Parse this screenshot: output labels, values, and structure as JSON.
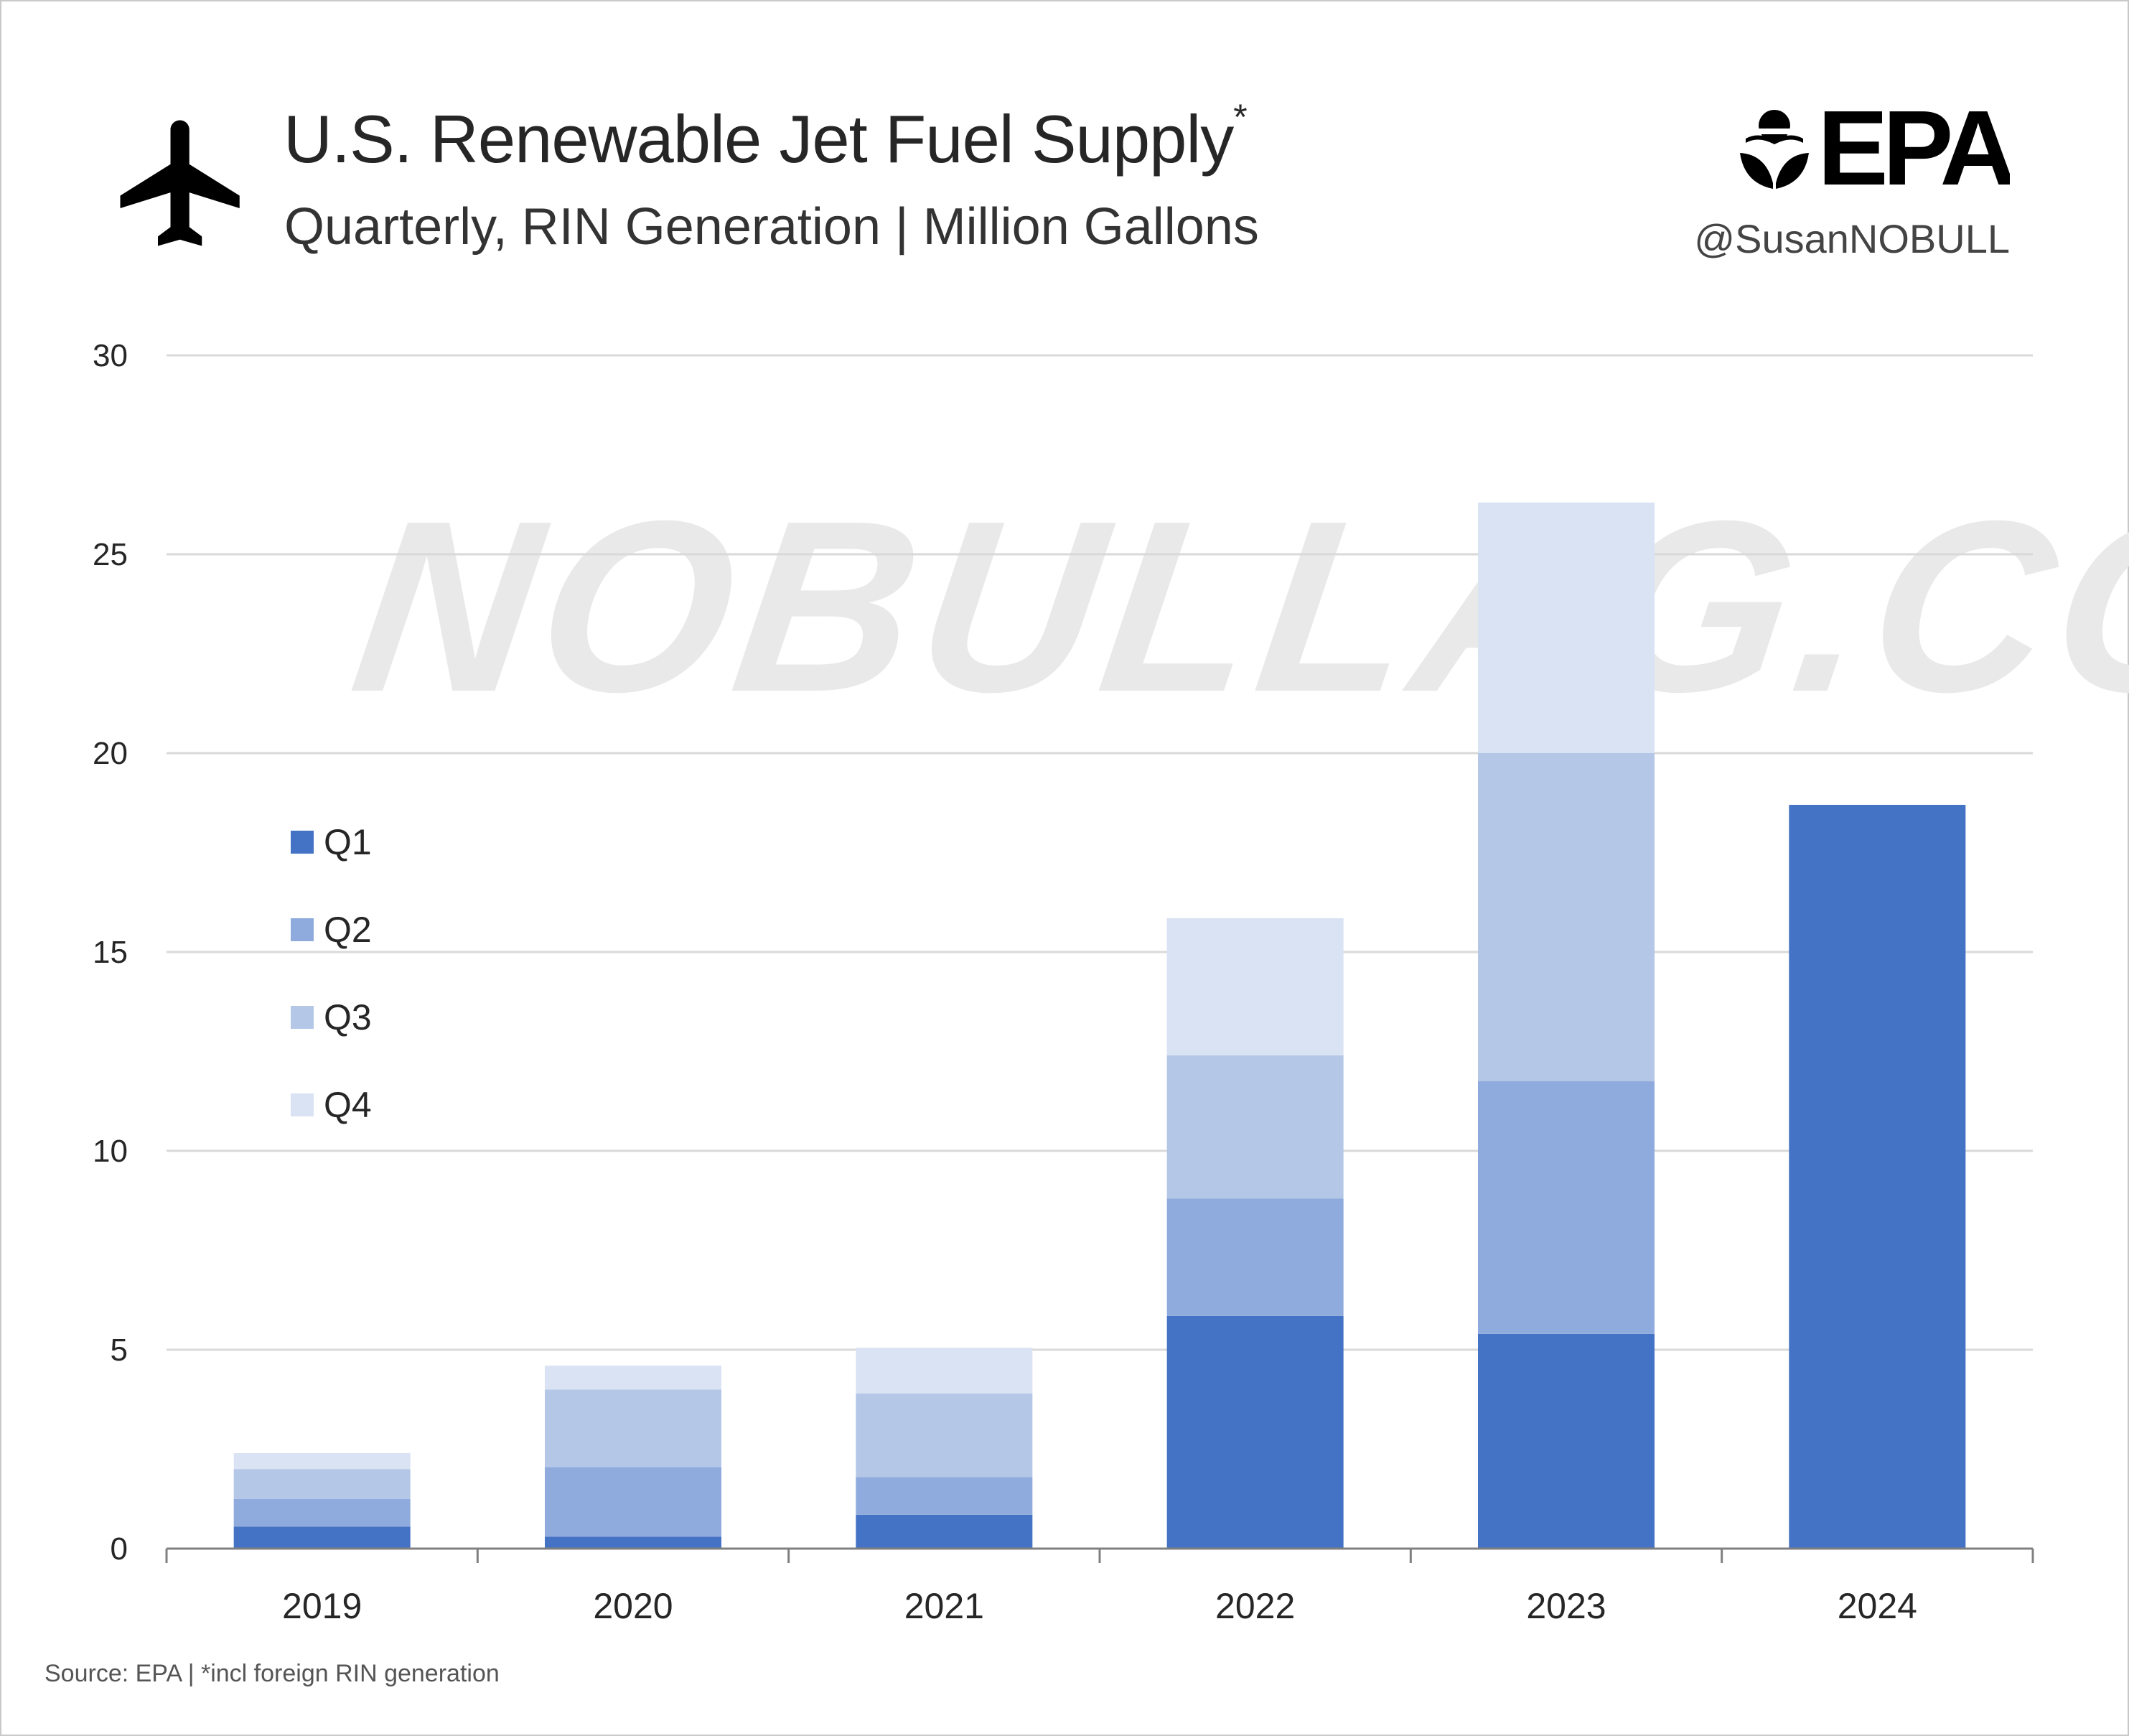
{
  "header": {
    "title": "U.S. Renewable Jet Fuel Supply",
    "title_mark": "*",
    "subtitle": "Quarterly, RIN Generation | Million Gallons",
    "logo_text": "EPA",
    "handle": "@SusanNOBULL",
    "icon": "airplane-icon"
  },
  "watermark": "NOBULLAG.COM",
  "footer": "Source: EPA  | *incl foreign RIN generation",
  "colors": {
    "q1": "#4472c4",
    "q2": "#8faadc",
    "q3": "#b4c7e7",
    "q4": "#dae3f3",
    "grid": "#d9d9d9",
    "axis": "#808080",
    "text": "#262626"
  },
  "chart_data": {
    "type": "bar",
    "stacked": true,
    "title": "U.S. Renewable Jet Fuel Supply",
    "subtitle": "Quarterly, RIN Generation | Million Gallons",
    "categories": [
      "2019",
      "2020",
      "2021",
      "2022",
      "2023",
      "2024"
    ],
    "series": [
      {
        "name": "Q1",
        "values": [
          0.55,
          0.3,
          0.85,
          5.85,
          5.4,
          18.7
        ]
      },
      {
        "name": "Q2",
        "values": [
          0.7,
          1.75,
          0.95,
          2.95,
          6.35,
          null
        ]
      },
      {
        "name": "Q3",
        "values": [
          0.75,
          1.95,
          2.1,
          3.6,
          8.25,
          null
        ]
      },
      {
        "name": "Q4",
        "values": [
          0.4,
          0.6,
          1.15,
          3.45,
          6.3,
          null
        ]
      }
    ],
    "ylim": [
      0,
      30
    ],
    "yticks": [
      0,
      5,
      10,
      15,
      20,
      25,
      30
    ],
    "grid": true,
    "legend_position": "left",
    "xlabel": "",
    "ylabel": ""
  }
}
